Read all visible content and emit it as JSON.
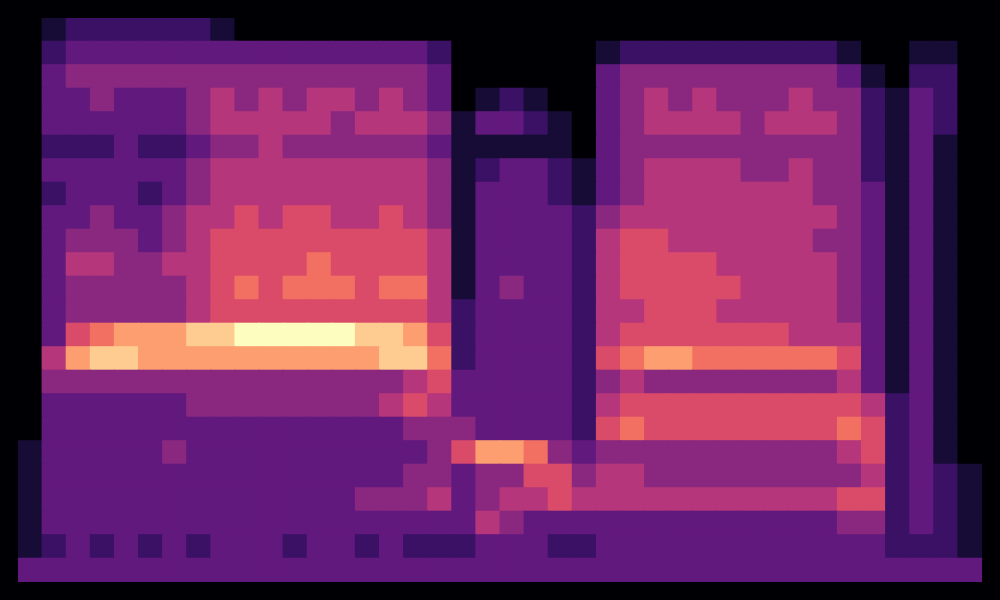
{
  "chart_data": {
    "type": "heatmap",
    "tick_labels": false,
    "zlim": [
      0,
      10
    ],
    "cells": [
      [
        0,
        1,
        2,
        2,
        2,
        2,
        2,
        2,
        1,
        0,
        0,
        0,
        0,
        0,
        0,
        0,
        0,
        0,
        0,
        0,
        0,
        0,
        0,
        0,
        0,
        0,
        0,
        0,
        0,
        0,
        0,
        0,
        0,
        0,
        0,
        0,
        0,
        0,
        0,
        0
      ],
      [
        0,
        2,
        3,
        3,
        3,
        3,
        3,
        3,
        3,
        3,
        3,
        3,
        3,
        3,
        3,
        3,
        3,
        2,
        0,
        0,
        0,
        0,
        0,
        0,
        1,
        2,
        2,
        2,
        2,
        2,
        2,
        2,
        2,
        2,
        1,
        0,
        0,
        1,
        1,
        0
      ],
      [
        0,
        3,
        4,
        4,
        4,
        4,
        4,
        4,
        4,
        4,
        4,
        4,
        4,
        4,
        4,
        4,
        4,
        3,
        0,
        0,
        0,
        0,
        0,
        0,
        3,
        4,
        4,
        4,
        4,
        4,
        4,
        4,
        4,
        4,
        3,
        1,
        0,
        2,
        2,
        0
      ],
      [
        0,
        3,
        3,
        4,
        3,
        3,
        3,
        4,
        5,
        4,
        5,
        4,
        5,
        5,
        4,
        5,
        4,
        3,
        0,
        1,
        2,
        1,
        0,
        0,
        3,
        4,
        5,
        4,
        5,
        4,
        4,
        4,
        5,
        4,
        4,
        2,
        1,
        3,
        2,
        0
      ],
      [
        0,
        3,
        3,
        3,
        3,
        3,
        3,
        4,
        5,
        5,
        5,
        5,
        5,
        4,
        5,
        5,
        5,
        4,
        1,
        3,
        3,
        2,
        1,
        0,
        3,
        4,
        5,
        5,
        5,
        5,
        4,
        5,
        5,
        5,
        4,
        2,
        1,
        3,
        2,
        0
      ],
      [
        0,
        2,
        2,
        2,
        3,
        2,
        2,
        3,
        4,
        4,
        5,
        4,
        4,
        4,
        4,
        4,
        4,
        3,
        1,
        1,
        1,
        1,
        1,
        0,
        3,
        4,
        4,
        4,
        4,
        4,
        4,
        4,
        4,
        4,
        4,
        2,
        1,
        3,
        1,
        0
      ],
      [
        0,
        3,
        3,
        3,
        3,
        3,
        3,
        4,
        5,
        5,
        5,
        5,
        5,
        5,
        5,
        5,
        5,
        4,
        1,
        2,
        3,
        3,
        2,
        1,
        3,
        4,
        5,
        5,
        5,
        5,
        4,
        4,
        5,
        4,
        4,
        2,
        1,
        3,
        1,
        0
      ],
      [
        0,
        2,
        3,
        3,
        3,
        2,
        3,
        4,
        5,
        5,
        5,
        5,
        5,
        5,
        5,
        5,
        5,
        4,
        1,
        3,
        3,
        3,
        2,
        1,
        3,
        4,
        5,
        5,
        5,
        5,
        5,
        5,
        5,
        4,
        4,
        3,
        1,
        3,
        1,
        0
      ],
      [
        0,
        3,
        3,
        4,
        3,
        3,
        4,
        5,
        5,
        6,
        5,
        6,
        6,
        5,
        5,
        6,
        5,
        4,
        1,
        3,
        3,
        3,
        3,
        2,
        4,
        5,
        5,
        5,
        5,
        5,
        5,
        5,
        5,
        5,
        4,
        3,
        1,
        3,
        1,
        0
      ],
      [
        0,
        3,
        4,
        4,
        4,
        3,
        4,
        5,
        6,
        6,
        6,
        6,
        6,
        6,
        6,
        6,
        6,
        5,
        1,
        3,
        3,
        3,
        3,
        2,
        5,
        6,
        6,
        5,
        5,
        5,
        5,
        5,
        5,
        4,
        4,
        3,
        1,
        3,
        1,
        0
      ],
      [
        0,
        3,
        5,
        5,
        4,
        4,
        5,
        5,
        6,
        6,
        6,
        6,
        7,
        6,
        6,
        6,
        6,
        5,
        1,
        3,
        3,
        3,
        3,
        2,
        5,
        6,
        6,
        6,
        6,
        5,
        5,
        5,
        5,
        5,
        4,
        3,
        1,
        3,
        1,
        0
      ],
      [
        0,
        3,
        4,
        4,
        4,
        4,
        4,
        5,
        6,
        7,
        6,
        7,
        7,
        7,
        6,
        7,
        7,
        5,
        1,
        3,
        4,
        3,
        3,
        2,
        5,
        6,
        6,
        6,
        6,
        6,
        5,
        5,
        5,
        5,
        4,
        3,
        1,
        3,
        1,
        0
      ],
      [
        0,
        3,
        4,
        4,
        4,
        4,
        4,
        5,
        6,
        6,
        6,
        6,
        6,
        6,
        6,
        6,
        6,
        5,
        2,
        3,
        3,
        3,
        3,
        2,
        5,
        5,
        6,
        6,
        6,
        5,
        5,
        5,
        5,
        5,
        4,
        3,
        1,
        3,
        1,
        0
      ],
      [
        0,
        3,
        6,
        7,
        8,
        8,
        8,
        9,
        9,
        10,
        10,
        10,
        10,
        10,
        9,
        9,
        8,
        6,
        2,
        3,
        3,
        3,
        3,
        2,
        5,
        6,
        6,
        6,
        6,
        6,
        6,
        6,
        5,
        5,
        5,
        3,
        1,
        3,
        1,
        0
      ],
      [
        0,
        5,
        8,
        9,
        9,
        8,
        8,
        8,
        8,
        8,
        8,
        8,
        8,
        8,
        8,
        9,
        9,
        7,
        2,
        3,
        3,
        3,
        3,
        2,
        6,
        7,
        8,
        8,
        7,
        7,
        7,
        7,
        7,
        7,
        6,
        3,
        1,
        3,
        1,
        0
      ],
      [
        0,
        4,
        4,
        4,
        4,
        4,
        4,
        4,
        4,
        4,
        4,
        4,
        4,
        4,
        4,
        4,
        5,
        6,
        3,
        3,
        3,
        3,
        3,
        2,
        4,
        5,
        4,
        4,
        4,
        4,
        4,
        4,
        4,
        4,
        5,
        3,
        1,
        3,
        1,
        0
      ],
      [
        0,
        3,
        3,
        3,
        3,
        3,
        3,
        4,
        4,
        4,
        4,
        4,
        4,
        4,
        4,
        5,
        6,
        5,
        3,
        3,
        3,
        3,
        3,
        2,
        5,
        6,
        6,
        6,
        6,
        6,
        6,
        6,
        6,
        6,
        6,
        5,
        2,
        3,
        1,
        0
      ],
      [
        0,
        3,
        3,
        3,
        3,
        3,
        3,
        3,
        3,
        3,
        3,
        3,
        3,
        3,
        3,
        3,
        4,
        4,
        4,
        3,
        3,
        3,
        3,
        2,
        6,
        7,
        6,
        6,
        6,
        6,
        6,
        6,
        6,
        6,
        7,
        6,
        2,
        3,
        1,
        0
      ],
      [
        1,
        3,
        3,
        3,
        3,
        3,
        4,
        3,
        3,
        3,
        3,
        3,
        3,
        3,
        3,
        3,
        3,
        4,
        6,
        8,
        8,
        7,
        4,
        3,
        4,
        4,
        4,
        4,
        4,
        4,
        4,
        4,
        4,
        4,
        5,
        6,
        2,
        3,
        1,
        0
      ],
      [
        1,
        3,
        3,
        3,
        3,
        3,
        3,
        3,
        3,
        3,
        3,
        3,
        3,
        3,
        3,
        3,
        4,
        4,
        3,
        4,
        4,
        6,
        6,
        4,
        5,
        5,
        4,
        4,
        4,
        4,
        4,
        4,
        4,
        4,
        4,
        5,
        2,
        3,
        2,
        1
      ],
      [
        1,
        3,
        3,
        3,
        3,
        3,
        3,
        3,
        3,
        3,
        3,
        3,
        3,
        3,
        4,
        4,
        4,
        5,
        3,
        4,
        5,
        5,
        6,
        5,
        5,
        5,
        5,
        5,
        5,
        5,
        5,
        5,
        5,
        5,
        6,
        6,
        2,
        3,
        2,
        1
      ],
      [
        1,
        3,
        3,
        3,
        3,
        3,
        3,
        3,
        3,
        3,
        3,
        3,
        3,
        3,
        3,
        3,
        3,
        3,
        3,
        5,
        4,
        3,
        3,
        3,
        3,
        3,
        3,
        3,
        3,
        3,
        3,
        3,
        3,
        3,
        4,
        4,
        2,
        3,
        2,
        1
      ],
      [
        1,
        2,
        3,
        2,
        3,
        2,
        3,
        2,
        3,
        3,
        3,
        2,
        3,
        3,
        2,
        3,
        2,
        2,
        2,
        3,
        3,
        3,
        2,
        2,
        3,
        3,
        3,
        3,
        3,
        3,
        3,
        3,
        3,
        3,
        3,
        3,
        2,
        2,
        2,
        1
      ],
      [
        3,
        3,
        3,
        3,
        3,
        3,
        3,
        3,
        3,
        3,
        3,
        3,
        3,
        3,
        3,
        3,
        3,
        3,
        3,
        3,
        3,
        3,
        3,
        3,
        3,
        3,
        3,
        3,
        3,
        3,
        3,
        3,
        3,
        3,
        3,
        3,
        3,
        3,
        3,
        3
      ]
    ]
  }
}
